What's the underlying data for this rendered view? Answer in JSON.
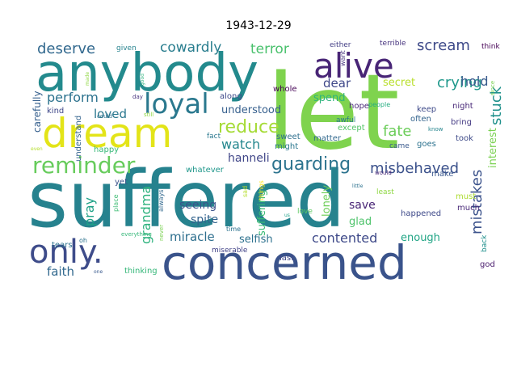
{
  "title": "1943-12-29",
  "words": [
    {
      "text": "let",
      "color": "#7fd34e"
    },
    {
      "text": "suffered",
      "color": "#26828e"
    },
    {
      "text": "anybody",
      "color": "#238a8d"
    },
    {
      "text": "concerned",
      "color": "#3a538b"
    },
    {
      "text": "dream",
      "color": "#e3e418"
    },
    {
      "text": "alive",
      "color": "#482576"
    },
    {
      "text": "loyal",
      "color": "#2a788e"
    },
    {
      "text": "only.",
      "color": "#3e4c8a"
    },
    {
      "text": "reminder",
      "color": "#67cc5c"
    },
    {
      "text": "reduce",
      "color": "#a5db36"
    },
    {
      "text": "guarding",
      "color": "#2c738e"
    },
    {
      "text": "misbehaved",
      "color": "#3b518b"
    },
    {
      "text": "deserve",
      "color": "#31688e"
    },
    {
      "text": "cowardly",
      "color": "#287d8e"
    },
    {
      "text": "terror",
      "color": "#4ac16d"
    },
    {
      "text": "scream",
      "color": "#3e4a89"
    },
    {
      "text": "crying",
      "color": "#1f988b"
    },
    {
      "text": "hold",
      "color": "#375a8c"
    },
    {
      "text": "perform",
      "color": "#2c728e"
    },
    {
      "text": "loved",
      "color": "#2a778e"
    },
    {
      "text": "watch",
      "color": "#24878e"
    },
    {
      "text": "fate",
      "color": "#6ccd5a"
    },
    {
      "text": "stuck",
      "color": "#21918c"
    },
    {
      "text": "mistakes",
      "color": "#3b528b"
    },
    {
      "text": "dear",
      "color": "#3f4889"
    },
    {
      "text": "understood",
      "color": "#355f8d"
    },
    {
      "text": "hanneli",
      "color": "#404688"
    },
    {
      "text": "secret",
      "color": "#b8de29"
    },
    {
      "text": "pray",
      "color": "#1fa187"
    },
    {
      "text": "grandma",
      "color": "#2db27d"
    },
    {
      "text": "seeing",
      "color": "#3b528b"
    },
    {
      "text": "spite",
      "color": "#33638d"
    },
    {
      "text": "miracle",
      "color": "#2e6f8e"
    },
    {
      "text": "suffering",
      "color": "#3aba76"
    },
    {
      "text": "contented",
      "color": "#3e4989"
    },
    {
      "text": "lonely",
      "color": "#6ece58"
    },
    {
      "text": "glad",
      "color": "#4ec36b"
    },
    {
      "text": "save",
      "color": "#482475"
    },
    {
      "text": "selfish",
      "color": "#2d718e"
    },
    {
      "text": "enough",
      "color": "#21a585"
    },
    {
      "text": "faith",
      "color": "#31688e"
    },
    {
      "text": "carefully",
      "color": "#355f8d"
    },
    {
      "text": "spend",
      "color": "#2fb47c"
    },
    {
      "text": "interest",
      "color": "#7ad151"
    },
    {
      "text": "happened",
      "color": "#3e4989"
    },
    {
      "text": "whole",
      "color": "#440154"
    },
    {
      "text": "along",
      "color": "#3e4989"
    },
    {
      "text": "might",
      "color": "#2a778e"
    },
    {
      "text": "hope",
      "color": "#482878"
    },
    {
      "text": "keep",
      "color": "#3e4a89"
    },
    {
      "text": "often",
      "color": "#33638d"
    },
    {
      "text": "night",
      "color": "#482878"
    },
    {
      "text": "bring",
      "color": "#443a83"
    },
    {
      "text": "except",
      "color": "#54c568"
    },
    {
      "text": "awful",
      "color": "#2a788e"
    },
    {
      "text": "came",
      "color": "#38588c"
    },
    {
      "text": "goes",
      "color": "#2c728e"
    },
    {
      "text": "took",
      "color": "#3e4a89"
    },
    {
      "text": "sweet",
      "color": "#2e6f8e"
    },
    {
      "text": "matter",
      "color": "#31688e"
    },
    {
      "text": "fact",
      "color": "#2a788e"
    },
    {
      "text": "whatever",
      "color": "#1f978b"
    },
    {
      "text": "yet",
      "color": "#3b528b"
    },
    {
      "text": "make",
      "color": "#39568c"
    },
    {
      "text": "least",
      "color": "#8fd744"
    },
    {
      "text": "must",
      "color": "#addc30"
    },
    {
      "text": "much",
      "color": "#482878"
    },
    {
      "text": "last",
      "color": "#3f4788"
    },
    {
      "text": "god",
      "color": "#481a6c"
    },
    {
      "text": "back",
      "color": "#21908d"
    },
    {
      "text": "love",
      "color": "#5ec962"
    },
    {
      "text": "tears",
      "color": "#2c728e"
    },
    {
      "text": "thinking",
      "color": "#35b779"
    },
    {
      "text": "happy",
      "color": "#37b878"
    },
    {
      "text": "understand",
      "color": "#33638d"
    },
    {
      "text": "kind",
      "color": "#3f4788"
    },
    {
      "text": "given",
      "color": "#26828e"
    },
    {
      "text": "either",
      "color": "#433e85"
    },
    {
      "text": "terrible",
      "color": "#46337e"
    },
    {
      "text": "think",
      "color": "#440154"
    },
    {
      "text": "want",
      "color": "#46327e"
    },
    {
      "text": "people",
      "color": "#26ad81"
    },
    {
      "text": "since",
      "color": "#7ad151"
    },
    {
      "text": "know",
      "color": "#25858e"
    },
    {
      "text": "always",
      "color": "#31688e"
    },
    {
      "text": "place",
      "color": "#3dbc74"
    },
    {
      "text": "miserable",
      "color": "#414287"
    },
    {
      "text": "time",
      "color": "#2c728e"
    },
    {
      "text": "sad",
      "color": "#b5de2b"
    },
    {
      "text": "things",
      "color": "#fde725"
    },
    {
      "text": "never",
      "color": "#7ad151"
    },
    {
      "text": "everything",
      "color": "#35b779"
    },
    {
      "text": "could",
      "color": "#2c728e"
    },
    {
      "text": "day",
      "color": "#46327e"
    },
    {
      "text": "still",
      "color": "#8fd744"
    },
    {
      "text": "would",
      "color": "#482878"
    },
    {
      "text": "little",
      "color": "#2c728e"
    },
    {
      "text": "even",
      "color": "#b5de2b"
    },
    {
      "text": "oh",
      "color": "#2c728e"
    },
    {
      "text": "one",
      "color": "#38588c"
    },
    {
      "text": "us",
      "color": "#1fa187"
    },
    {
      "text": "good",
      "color": "#2db27d"
    },
    {
      "text": "made",
      "color": "#90d743"
    }
  ]
}
